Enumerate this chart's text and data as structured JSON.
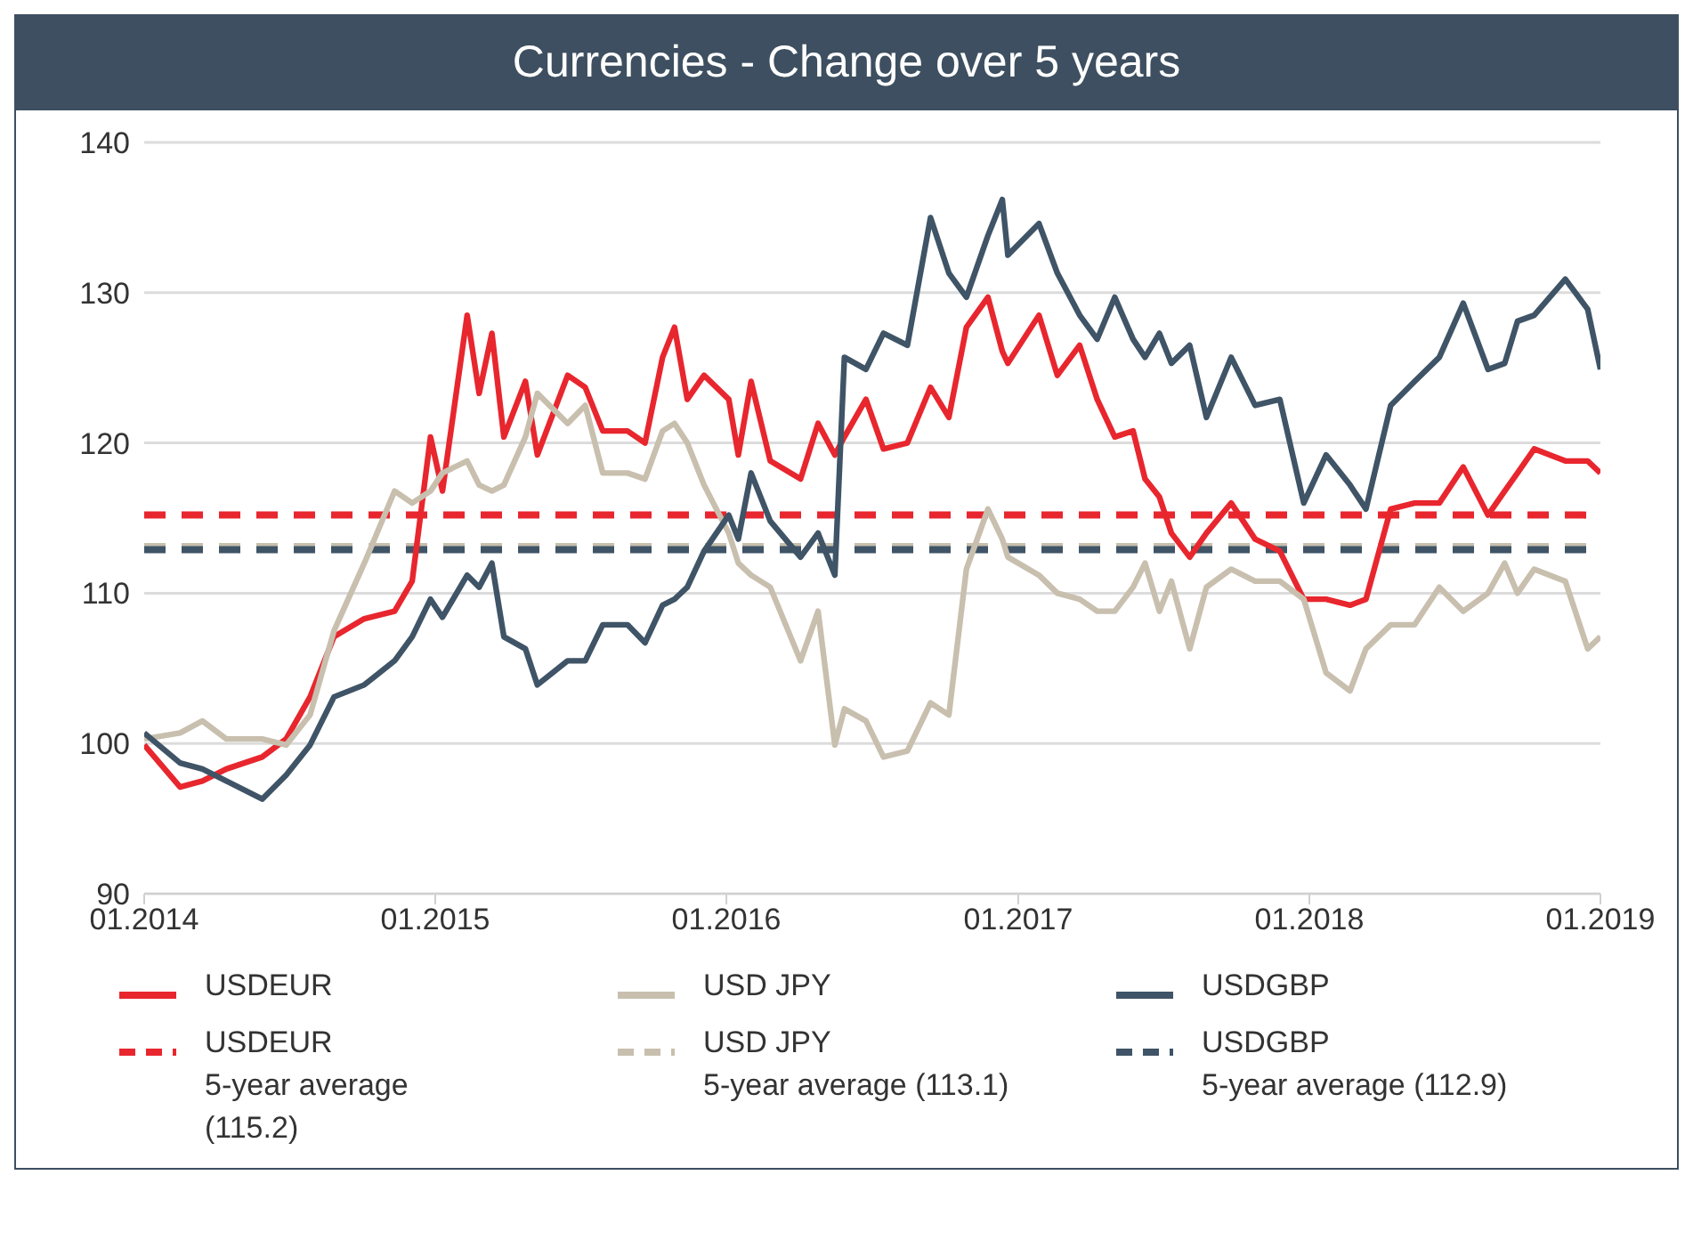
{
  "chart_data": {
    "type": "line",
    "title": "Currencies - Change over 5 years",
    "x": [
      "2014-01-01",
      "2014-02-15",
      "2014-03-15",
      "2014-04-14",
      "2014-05-29",
      "2014-06-28",
      "2014-07-28",
      "2014-08-27",
      "2014-10-04",
      "2014-11-11",
      "2014-12-03",
      "2014-12-26",
      "2015-01-10",
      "2015-02-10",
      "2015-02-25",
      "2015-03-13",
      "2015-03-28",
      "2015-04-24",
      "2015-05-09",
      "2015-06-16",
      "2015-07-08",
      "2015-07-30",
      "2015-08-30",
      "2015-09-21",
      "2015-10-13",
      "2015-10-28",
      "2015-11-13",
      "2015-12-04",
      "2016-01-04",
      "2016-01-16",
      "2016-02-01",
      "2016-02-25",
      "2016-04-03",
      "2016-04-25",
      "2016-05-16",
      "2016-05-28",
      "2016-06-24",
      "2016-07-16",
      "2016-08-15",
      "2016-09-13",
      "2016-10-06",
      "2016-10-28",
      "2016-11-24",
      "2016-12-12",
      "2016-12-19",
      "2017-01-27",
      "2017-02-19",
      "2017-03-19",
      "2017-04-10",
      "2017-05-02",
      "2017-05-25",
      "2017-06-09",
      "2017-06-27",
      "2017-07-12",
      "2017-08-04",
      "2017-08-25",
      "2017-09-25",
      "2017-10-25",
      "2017-11-25",
      "2017-12-25",
      "2018-01-22",
      "2018-02-21",
      "2018-03-13",
      "2018-04-13",
      "2018-05-13",
      "2018-06-13",
      "2018-07-13",
      "2018-08-13",
      "2018-09-03",
      "2018-09-19",
      "2018-10-10",
      "2018-11-18",
      "2018-12-16",
      "2019-01-01"
    ],
    "series": [
      {
        "name": "USDEUR",
        "color": "#e8262e",
        "values": [
          99.9,
          97.1,
          97.5,
          98.3,
          99.1,
          100.3,
          103.1,
          107.1,
          108.3,
          108.8,
          110.8,
          120.4,
          116.8,
          128.5,
          123.3,
          127.3,
          120.4,
          124.1,
          119.2,
          124.5,
          123.7,
          120.8,
          120.8,
          120.0,
          125.7,
          127.7,
          122.9,
          124.5,
          122.9,
          119.2,
          124.1,
          118.8,
          117.6,
          121.3,
          119.2,
          120.4,
          122.9,
          119.6,
          120.0,
          123.7,
          121.7,
          127.7,
          129.7,
          126.1,
          125.3,
          128.5,
          124.5,
          126.5,
          122.9,
          120.4,
          120.8,
          117.6,
          116.4,
          114.0,
          112.4,
          114.0,
          116.0,
          113.6,
          112.8,
          109.6,
          109.6,
          109.2,
          109.6,
          115.6,
          116.0,
          116.0,
          118.4,
          115.2,
          116.8,
          118.0,
          119.6,
          118.8,
          118.8,
          118.0
        ]
      },
      {
        "name": "USD JPY",
        "color": "#c8bfae",
        "values": [
          100.3,
          100.7,
          101.5,
          100.3,
          100.3,
          99.9,
          101.9,
          107.5,
          112.0,
          116.8,
          116.0,
          116.8,
          118.0,
          118.8,
          117.2,
          116.8,
          117.2,
          120.4,
          123.3,
          121.3,
          122.5,
          118.0,
          118.0,
          117.6,
          120.8,
          121.3,
          120.0,
          117.2,
          114.0,
          112.0,
          111.2,
          110.4,
          105.5,
          108.8,
          99.9,
          102.3,
          101.5,
          99.1,
          99.5,
          102.7,
          101.9,
          111.6,
          115.6,
          113.6,
          112.4,
          111.2,
          110.0,
          109.6,
          108.8,
          108.8,
          110.4,
          112.0,
          108.8,
          110.8,
          106.3,
          110.4,
          111.6,
          110.8,
          110.8,
          109.6,
          104.7,
          103.5,
          106.3,
          107.9,
          107.9,
          110.4,
          108.8,
          110.0,
          112.0,
          110.0,
          111.6,
          110.8,
          106.3,
          107.1
        ]
      },
      {
        "name": "USDGBP",
        "color": "#3f5466",
        "values": [
          100.7,
          98.7,
          98.3,
          97.5,
          96.3,
          97.9,
          99.9,
          103.1,
          103.9,
          105.5,
          107.1,
          109.6,
          108.4,
          111.2,
          110.4,
          112.0,
          107.1,
          106.3,
          103.9,
          105.5,
          105.5,
          107.9,
          107.9,
          106.7,
          109.2,
          109.6,
          110.4,
          112.8,
          115.2,
          113.6,
          118.0,
          114.8,
          112.4,
          114.0,
          111.2,
          125.7,
          124.9,
          127.3,
          126.5,
          135.0,
          131.3,
          129.7,
          133.8,
          136.2,
          132.5,
          134.6,
          131.3,
          128.5,
          126.9,
          129.7,
          126.9,
          125.7,
          127.3,
          125.3,
          126.5,
          121.7,
          125.7,
          122.5,
          122.9,
          116.0,
          119.2,
          117.2,
          115.6,
          122.5,
          124.1,
          125.7,
          129.3,
          124.9,
          125.3,
          128.1,
          128.5,
          130.9,
          128.9,
          124.9
        ]
      }
    ],
    "ref_lines": [
      {
        "axis": "y",
        "value": 115.2,
        "label": "USDEUR\n5-year average\n(115.2)",
        "color": "#e8262e",
        "line_style": "dashed"
      },
      {
        "axis": "y",
        "value": 113.1,
        "label": "USD JPY\n5-year average (113.1)",
        "color": "#c8bfae",
        "line_style": "dashed"
      },
      {
        "axis": "y",
        "value": 112.9,
        "label": "USDGBP\n5-year average (112.9)",
        "color": "#3f5466",
        "line_style": "dashed"
      }
    ],
    "xlim": [
      "2014-01-01",
      "2019-01-01"
    ],
    "xticks": [
      {
        "value": "2014-01-01",
        "label": "01.2014"
      },
      {
        "value": "2015-01-01",
        "label": "01.2015"
      },
      {
        "value": "2016-01-01",
        "label": "01.2016"
      },
      {
        "value": "2017-01-01",
        "label": "01.2017"
      },
      {
        "value": "2018-01-01",
        "label": "01.2018"
      },
      {
        "value": "2019-01-01",
        "label": "01.2019"
      }
    ],
    "ylim": [
      90,
      140
    ],
    "yticks": [
      90,
      100,
      110,
      120,
      130,
      140
    ],
    "grid": "y",
    "legend": "bottom",
    "line_style": "solid"
  }
}
